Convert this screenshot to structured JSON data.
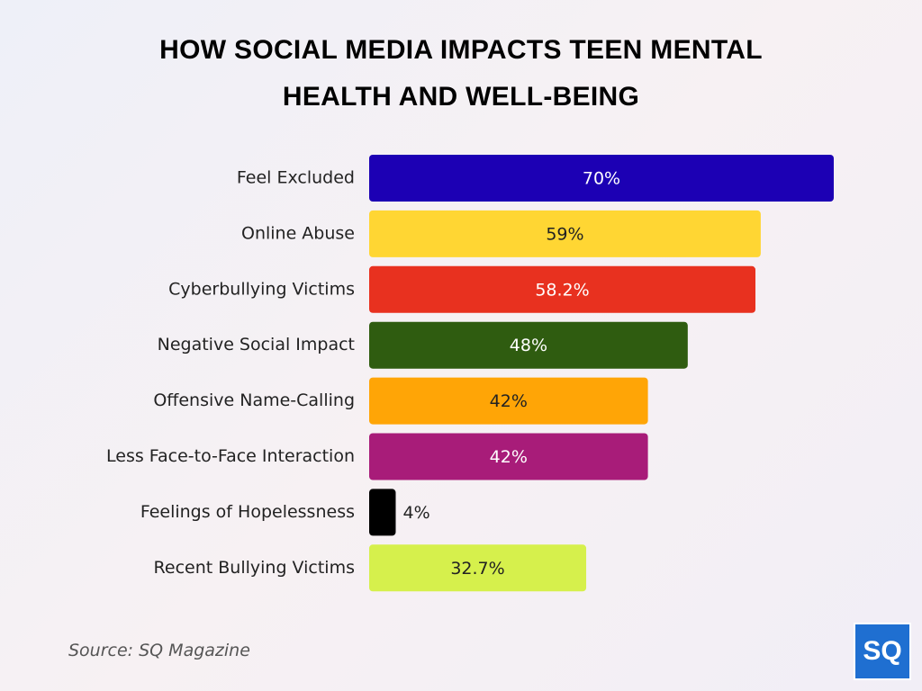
{
  "chart_data": {
    "type": "bar",
    "orientation": "horizontal",
    "title": "HOW SOCIAL MEDIA IMPACTS TEEN MENTAL HEALTH AND WELL-BEING",
    "categories": [
      "Feel Excluded",
      "Online Abuse",
      "Cyberbullying Victims",
      "Negative Social Impact",
      "Offensive Name-Calling",
      "Less Face-to-Face Interaction",
      "Feelings of Hopelessness",
      "Recent Bullying Victims"
    ],
    "values": [
      70,
      59,
      58.2,
      48,
      42,
      42,
      4,
      32.7
    ],
    "value_labels": [
      "70%",
      "59%",
      "58.2%",
      "48%",
      "42%",
      "42%",
      "4%",
      "32.7%"
    ],
    "colors": [
      "#1c00b4",
      "#ffd633",
      "#e8311f",
      "#2f5c10",
      "#ffa506",
      "#a81c79",
      "#000000",
      "#d6f04c"
    ],
    "source": "Source: SQ Magazine",
    "logo": "SQ"
  }
}
